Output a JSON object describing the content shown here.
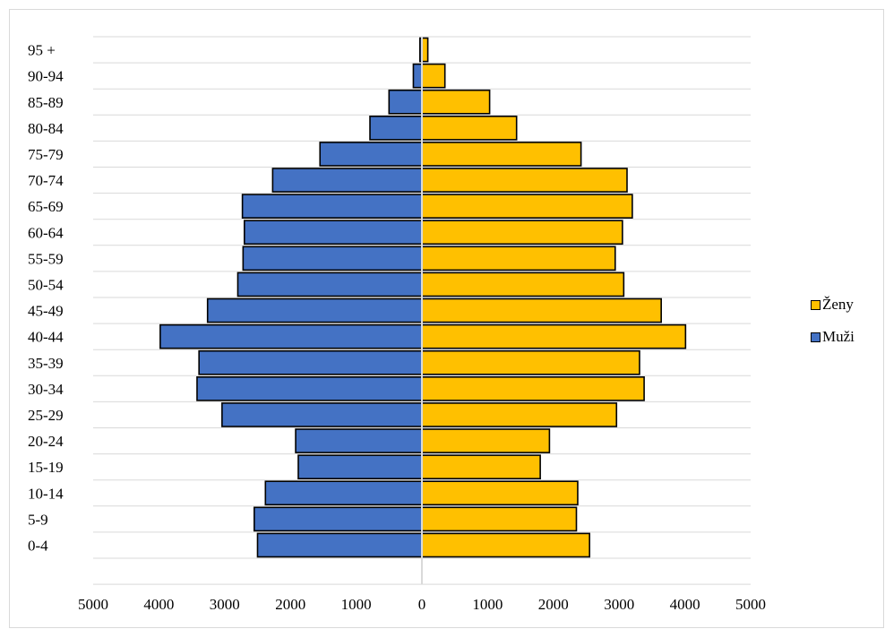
{
  "chart_data": {
    "type": "bar",
    "orientation": "horizontal",
    "subtype": "population-pyramid",
    "title": "",
    "xlabel": "",
    "ylabel": "",
    "categories": [
      "0-4",
      "5-9",
      "10-14",
      "15-19",
      "20-24",
      "25-29",
      "30-34",
      "35-39",
      "40-44",
      "45-49",
      "50-54",
      "55-59",
      "60-64",
      "65-69",
      "70-74",
      "75-79",
      "80-84",
      "85-89",
      "90-94",
      "95 +"
    ],
    "series": [
      {
        "name": "Ženy",
        "color": "#FFC000",
        "side": "right",
        "values": [
          2550,
          2350,
          2370,
          1800,
          1940,
          2960,
          3380,
          3310,
          4010,
          3640,
          3070,
          2940,
          3050,
          3200,
          3120,
          2420,
          1440,
          1030,
          350,
          90
        ]
      },
      {
        "name": "Muži",
        "color": "#4472C4",
        "side": "left",
        "values": [
          2500,
          2550,
          2380,
          1880,
          1920,
          3040,
          3420,
          3390,
          3980,
          3260,
          2800,
          2720,
          2700,
          2730,
          2270,
          1550,
          790,
          500,
          130,
          30
        ]
      }
    ],
    "xlim": [
      -5000,
      5000
    ],
    "xticks": [
      "5000",
      "4000",
      "3000",
      "2000",
      "1000",
      "0",
      "1000",
      "2000",
      "3000",
      "4000",
      "5000"
    ],
    "grid": true,
    "legend_position": "right"
  }
}
